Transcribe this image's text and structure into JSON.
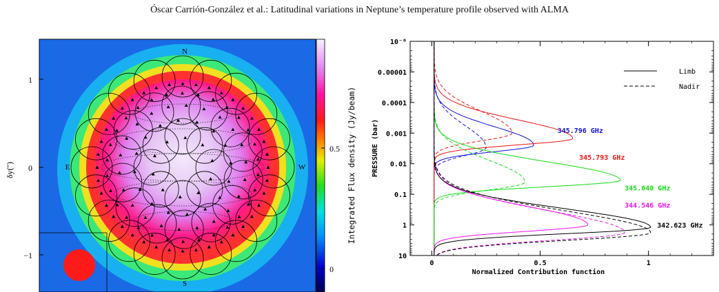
{
  "header": {
    "running_title": "Óscar Carrión-González et al.: Latitudinal variations in Neptune’s temperature profile observed with ALMA"
  },
  "left_figure": {
    "ylabel": "δy('')",
    "y_ticks": [
      "1",
      "0",
      "−1"
    ],
    "directions": {
      "north": "N",
      "south": "S",
      "east": "E",
      "west": "W"
    },
    "colorbar_label": "Integrated Flux density (Jy/beam)",
    "colorbar_ticks": [
      "0.5",
      "0"
    ],
    "beam_color": "#ff1a1a"
  },
  "chart_data": {
    "type": "line",
    "ylabel": "PRESSURE (bar)",
    "xlabel": "Normalized Contribution function",
    "x_ticks": [
      "0",
      "0.5",
      "1"
    ],
    "xlim": [
      -0.1,
      1.3
    ],
    "y_scale": "log",
    "y_tick_labels": [
      "10⁻⁶",
      "0.00001",
      "0.0001",
      "0.001",
      "0.01",
      "0.1",
      "1",
      "10"
    ],
    "ylim": [
      1e-06,
      10
    ],
    "legend": {
      "position": "top-right",
      "entries": [
        "Limb",
        "Nadir"
      ]
    },
    "series": [
      {
        "name": "345.796 GHz",
        "color": "#1010dd",
        "limb": {
          "peak_x": 0.46,
          "peak_p": 0.0025
        },
        "nadir": {
          "peak_x": 0.24,
          "peak_p": 0.003
        }
      },
      {
        "name": "345.793 GHz",
        "color": "#ee1111",
        "limb": {
          "peak_x": 0.64,
          "peak_p": 0.0015
        },
        "nadir": {
          "peak_x": 0.36,
          "peak_p": 0.001
        }
      },
      {
        "name": "345.640 GHz",
        "color": "#11dd11",
        "limb": {
          "peak_x": 0.86,
          "peak_p": 0.035
        },
        "nadir": {
          "peak_x": 0.42,
          "peak_p": 0.04
        }
      },
      {
        "name": "344.546 GHz",
        "color": "#ee11ee",
        "limb": {
          "peak_x": 0.71,
          "peak_p": 1.0
        },
        "nadir": {
          "peak_x": 0.88,
          "peak_p": 1.8
        }
      },
      {
        "name": "342.623 GHz",
        "color": "#000000",
        "limb": {
          "peak_x": 1.0,
          "peak_p": 1.2
        },
        "nadir": {
          "peak_x": 1.0,
          "peak_p": 1.8
        }
      }
    ]
  }
}
